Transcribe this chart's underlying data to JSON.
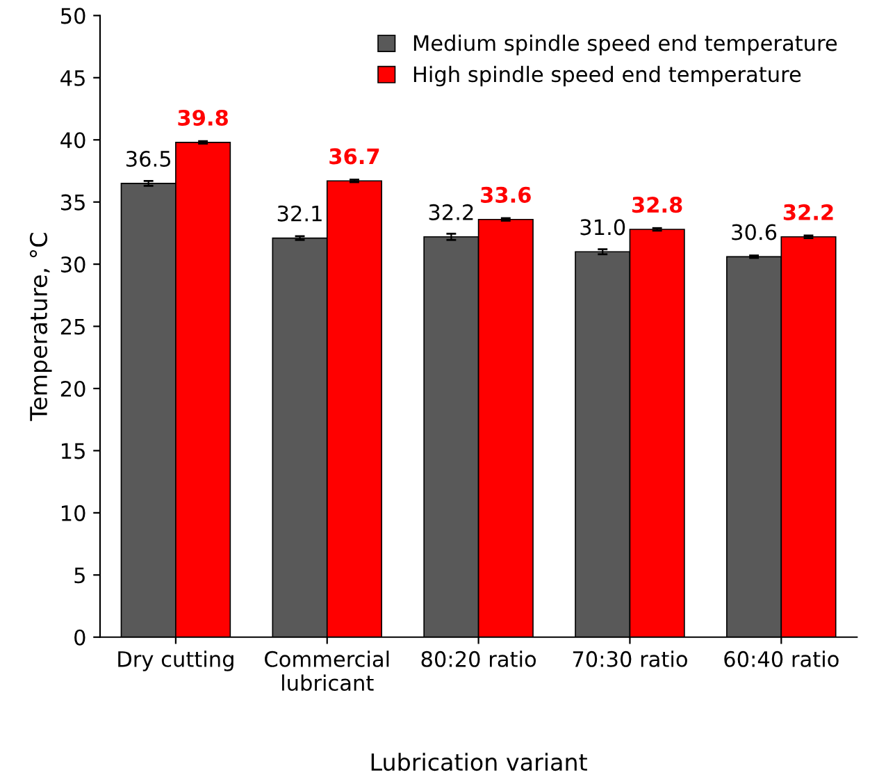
{
  "chart_data": {
    "type": "bar",
    "categories": [
      "Dry cutting",
      "Commercial\nlubricant",
      "80:20 ratio",
      "70:30 ratio",
      "60:40 ratio"
    ],
    "xlabel": "Lubrication variant",
    "ylabel": "Temperature, °C",
    "series": [
      {
        "name": "Medium spindle speed end temperature",
        "color": "#595959",
        "values": [
          36.5,
          32.1,
          32.2,
          31.0,
          30.6
        ],
        "value_labels": [
          "36.5",
          "32.1",
          "32.2",
          "31.0",
          "30.6"
        ],
        "errors": [
          0.2,
          0.15,
          0.25,
          0.2,
          0.1
        ]
      },
      {
        "name": "High spindle speed end temperature",
        "color": "#ff0000",
        "values": [
          39.8,
          36.7,
          33.6,
          32.8,
          32.2
        ],
        "value_labels": [
          "39.8",
          "36.7",
          "33.6",
          "32.8",
          "32.2"
        ],
        "errors": [
          0.1,
          0.1,
          0.1,
          0.1,
          0.1
        ]
      }
    ],
    "ylim": [
      0,
      50
    ],
    "yticks": [
      0,
      5,
      10,
      15,
      20,
      25,
      30,
      35,
      40,
      45,
      50
    ],
    "legend": "top right",
    "grid": false
  }
}
